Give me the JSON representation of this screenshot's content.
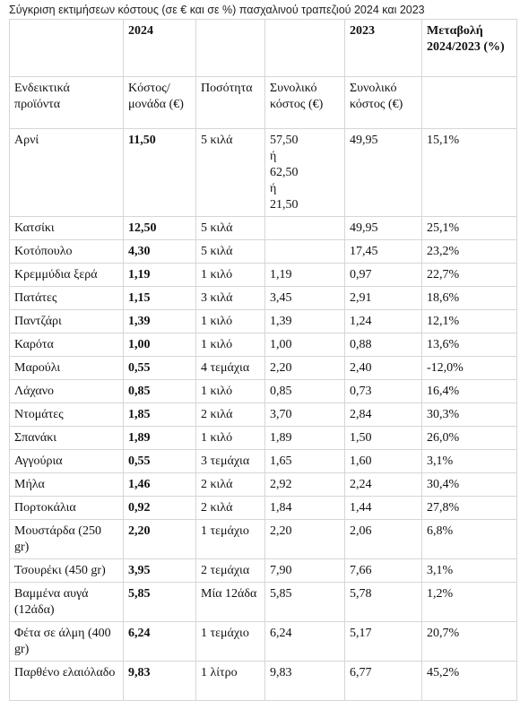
{
  "caption": "Σύγκριση εκτιμήσεων κόστους (σε € και σε %) πασχαλινού τραπεζιού 2024 και 2023",
  "header": {
    "year_2024": "2024",
    "year_2023": "2023",
    "change_label": "Μεταβολή 2024/2023 (%)"
  },
  "subheader": {
    "products": "Ενδεικτικά προϊόντα",
    "unit_cost": "Κόστος/ μονάδα (€)",
    "quantity": "Ποσότητα",
    "total_2024": "Συνολικό κόστος (€)",
    "total_2023": "Συνολικό κόστος (€)"
  },
  "lamb": {
    "product": "Αρνί",
    "unit_cost": "11,50",
    "quantity": "5 κιλά",
    "total_lines": [
      "57,50",
      "ή",
      "62,50",
      "ή",
      "21,50"
    ],
    "total_2023": "49,95",
    "change": "15,1%"
  },
  "rows": [
    {
      "product": "Κατσίκι",
      "unit_cost": "12,50",
      "quantity": "5 κιλά",
      "total_2024": "",
      "total_2023": "49,95",
      "change": "25,1%"
    },
    {
      "product": "Κοτόπουλο",
      "unit_cost": "4,30",
      "quantity": "5 κιλά",
      "total_2024": "",
      "total_2023": "17,45",
      "change": "23,2%"
    },
    {
      "product": "Κρεμμύδια ξερά",
      "unit_cost": "1,19",
      "quantity": "1 κιλό",
      "total_2024": "1,19",
      "total_2023": "0,97",
      "change": "22,7%"
    },
    {
      "product": "Πατάτες",
      "unit_cost": "1,15",
      "quantity": "3 κιλά",
      "total_2024": "3,45",
      "total_2023": "2,91",
      "change": "18,6%"
    },
    {
      "product": "Παντζάρι",
      "unit_cost": "1,39",
      "quantity": "1 κιλό",
      "total_2024": "1,39",
      "total_2023": "1,24",
      "change": "12,1%"
    },
    {
      "product": "Καρότα",
      "unit_cost": "1,00",
      "quantity": "1 κιλό",
      "total_2024": "1,00",
      "total_2023": "0,88",
      "change": "13,6%"
    },
    {
      "product": "Μαρούλι",
      "unit_cost": "0,55",
      "quantity": "4 τεμάχια",
      "total_2024": "2,20",
      "total_2023": "2,40",
      "change": "-12,0%"
    },
    {
      "product": "Λάχανο",
      "unit_cost": "0,85",
      "quantity": "1 κιλό",
      "total_2024": "0,85",
      "total_2023": "0,73",
      "change": "16,4%"
    },
    {
      "product": "Ντομάτες",
      "unit_cost": "1,85",
      "quantity": "2 κιλά",
      "total_2024": "3,70",
      "total_2023": "2,84",
      "change": "30,3%"
    },
    {
      "product": "Σπανάκι",
      "unit_cost": "1,89",
      "quantity": "1 κιλό",
      "total_2024": "1,89",
      "total_2023": "1,50",
      "change": "26,0%"
    },
    {
      "product": "Αγγούρια",
      "unit_cost": "0,55",
      "quantity": "3 τεμάχια",
      "total_2024": "1,65",
      "total_2023": "1,60",
      "change": "3,1%"
    },
    {
      "product": "Μήλα",
      "unit_cost": "1,46",
      "quantity": "2 κιλά",
      "total_2024": "2,92",
      "total_2023": "2,24",
      "change": "30,4%"
    },
    {
      "product": "Πορτοκάλια",
      "unit_cost": "0,92",
      "quantity": "2 κιλά",
      "total_2024": "1,84",
      "total_2023": "1,44",
      "change": "27,8%"
    },
    {
      "product": "Μουστάρδα (250 gr)",
      "unit_cost": "2,20",
      "quantity": "1 τεμάχιο",
      "total_2024": "2,20",
      "total_2023": "2,06",
      "change": "6,8%",
      "two_line": true
    },
    {
      "product": "Τσουρέκι (450 gr)",
      "unit_cost": "3,95",
      "quantity": "2 τεμάχια",
      "total_2024": "7,90",
      "total_2023": "7,66",
      "change": "3,1%"
    },
    {
      "product": "Βαμμένα αυγά (12άδα)",
      "unit_cost": "5,85",
      "quantity": "Μία 12άδα",
      "total_2024": "5,85",
      "total_2023": "5,78",
      "change": "1,2%",
      "two_line": true
    },
    {
      "product": "Φέτα σε άλμη (400 gr)",
      "unit_cost": "6,24",
      "quantity": "1 τεμάχιο",
      "total_2024": "6,24",
      "total_2023": "5,17",
      "change": "20,7%",
      "two_line": true
    },
    {
      "product": "Παρθένο ελαιόλαδο",
      "unit_cost": "9,83",
      "quantity": "1 λίτρο",
      "total_2024": "9,83",
      "total_2023": "6,77",
      "change": "45,2%",
      "two_line": true
    }
  ]
}
